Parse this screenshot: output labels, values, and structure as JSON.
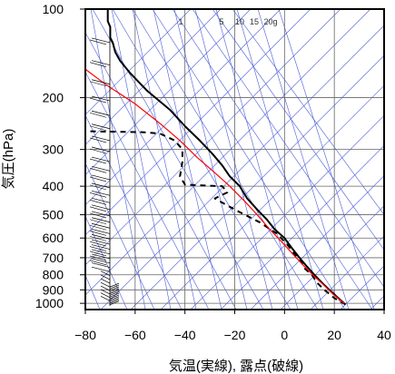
{
  "chart_data": {
    "type": "line",
    "xlabel": "気温(実線), 露点(破線)",
    "ylabel": "気圧(hPa)",
    "x_range": [
      -80,
      40
    ],
    "p_range": [
      1050,
      100
    ],
    "y_scale": "log",
    "x_ticks": [
      -80,
      -60,
      -40,
      -20,
      0,
      20,
      40
    ],
    "p_ticks": [
      100,
      200,
      300,
      400,
      500,
      600,
      700,
      800,
      900,
      1000
    ],
    "mixing_ratio_labels": [
      "1",
      "5",
      "10",
      "15",
      "20g"
    ],
    "grid": true,
    "series": [
      {
        "style": "solid",
        "color": "#000000",
        "points": [
          [
            -71,
            100
          ],
          [
            -71,
            110
          ],
          [
            -70,
            115
          ],
          [
            -70,
            120
          ],
          [
            -70,
            125
          ],
          [
            -69,
            130
          ],
          [
            -68,
            140
          ],
          [
            -66,
            150
          ],
          [
            -62,
            165
          ],
          [
            -55,
            190
          ],
          [
            -46,
            220
          ],
          [
            -40,
            250
          ],
          [
            -34,
            280
          ],
          [
            -29,
            310
          ],
          [
            -25,
            340
          ],
          [
            -22,
            370
          ],
          [
            -18,
            400
          ],
          [
            -15,
            440
          ],
          [
            -11,
            480
          ],
          [
            -7,
            520
          ],
          [
            -4,
            560
          ],
          [
            0,
            600
          ],
          [
            3,
            650
          ],
          [
            6,
            700
          ],
          [
            9,
            750
          ],
          [
            12,
            800
          ],
          [
            15,
            850
          ],
          [
            18,
            900
          ],
          [
            21,
            950
          ],
          [
            24,
            1000
          ]
        ]
      },
      {
        "style": "dashed",
        "color": "#000000",
        "points": [
          [
            -82,
            260
          ],
          [
            -57,
            262
          ],
          [
            -50,
            265
          ],
          [
            -44,
            280
          ],
          [
            -41,
            300
          ],
          [
            -41,
            330
          ],
          [
            -42,
            370
          ],
          [
            -40,
            395
          ],
          [
            -32,
            398
          ],
          [
            -25,
            400
          ],
          [
            -23,
            420
          ],
          [
            -28,
            440
          ],
          [
            -24,
            460
          ],
          [
            -18,
            490
          ],
          [
            -10,
            530
          ],
          [
            -3,
            580
          ],
          [
            1,
            630
          ],
          [
            4,
            680
          ],
          [
            7,
            730
          ],
          [
            8,
            760
          ],
          [
            11,
            800
          ],
          [
            13,
            850
          ],
          [
            16,
            900
          ],
          [
            20,
            960
          ],
          [
            25,
            1015
          ]
        ]
      },
      {
        "style": "solid",
        "color": "#ff0000",
        "points": [
          [
            -80,
            160
          ],
          [
            -72,
            180
          ],
          [
            -60,
            210
          ],
          [
            -50,
            245
          ],
          [
            -42,
            280
          ],
          [
            -35,
            320
          ],
          [
            -28,
            360
          ],
          [
            -22,
            400
          ],
          [
            -16,
            450
          ],
          [
            -11,
            500
          ],
          [
            -6,
            560
          ],
          [
            -1,
            620
          ],
          [
            4,
            690
          ],
          [
            8,
            750
          ],
          [
            12,
            810
          ],
          [
            16,
            870
          ],
          [
            20,
            940
          ],
          [
            24,
            1000
          ]
        ]
      }
    ]
  }
}
